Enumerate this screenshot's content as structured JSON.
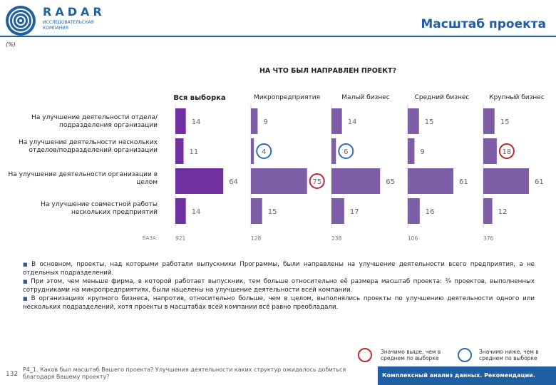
{
  "header": {
    "brand": "RADAR",
    "brand_sub": "ИССЛЕДОВАТЕЛЬСКАЯ КОМПАНИЯ",
    "slide_title": "Масштаб проекта",
    "unit": "(%)"
  },
  "chart_data": {
    "type": "bar",
    "title": "НА ЧТО БЫЛ НАПРАВЛЕН ПРОЕКТ?",
    "categories": [
      "На улучшение деятельности отдела/подразделения организации",
      "На улучшение деятельности нескольких отделов/подразделений организации",
      "На улучшение деятельности организации в целом",
      "На улучшение совместной работы нескольких предприятий"
    ],
    "series": [
      {
        "name": "Вся выборка",
        "values": [
          14,
          11,
          64,
          14
        ],
        "base": "921"
      },
      {
        "name": "Микропредприятия",
        "values": [
          9,
          4,
          75,
          15
        ],
        "base": "128"
      },
      {
        "name": "Малый бизнес",
        "values": [
          14,
          6,
          65,
          17
        ],
        "base": "238"
      },
      {
        "name": "Средний бизнес",
        "values": [
          15,
          9,
          61,
          16
        ],
        "base": "106"
      },
      {
        "name": "Крупный бизнес",
        "values": [
          15,
          18,
          61,
          12
        ],
        "base": "376"
      }
    ],
    "highlights": [
      {
        "series": 1,
        "category": 1,
        "kind": "lower"
      },
      {
        "series": 1,
        "category": 2,
        "kind": "higher"
      },
      {
        "series": 2,
        "category": 1,
        "kind": "lower"
      },
      {
        "series": 4,
        "category": 1,
        "kind": "higher"
      }
    ],
    "base_label": "БАЗА:",
    "colors": {
      "total": "#7030a0",
      "groups": "#7d5da6",
      "higher": "#c0262d",
      "lower": "#2e6fb5"
    }
  },
  "bullets": [
    "В основном, проекты, над которыми работали выпускники Программы, были направлены на улучшение деятельности всего предприятия, а не отдельных подразделений.",
    "При этом, чем меньше фирма, в которой работает выпускник, тем больше относительно её размера масштаб проекта: ¾ проектов, выполненных сотрудниками на микропредприятиях, были нацелены на улучшение деятельности всей компании.",
    "В организациях крупного бизнеса, напротив, относительно больше, чем в целом, выполнялись проекты по улучшению деятельности одного или нескольких подразделений, хотя проекты в масштабах всей компании всё равно преобладали."
  ],
  "legend": {
    "higher": "Значимо выше, чем в среднем по выборке",
    "lower": "Значимо ниже, чем в среднем по выборке"
  },
  "footer": {
    "page_number": "132",
    "question": "P4_1. Каков был масштаб Вашего проекта? Улучшения деятельности каких структур ожидалось добиться благодаря Вашему проекту?",
    "tagline": "Комплексный анализ данных. Рекомендации."
  }
}
